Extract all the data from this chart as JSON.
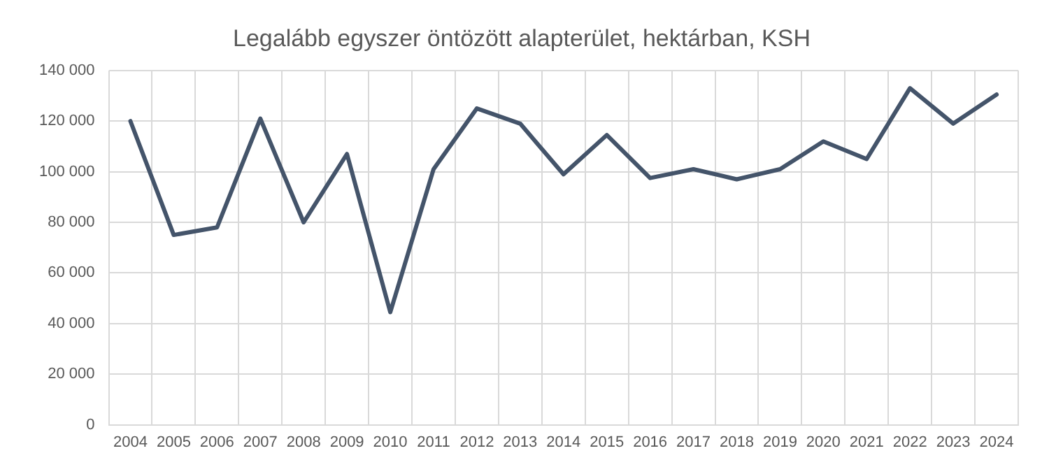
{
  "chart_data": {
    "type": "line",
    "title": "Legalább egyszer öntözött alapterület, hektárban, KSH",
    "categories": [
      "2004",
      "2005",
      "2006",
      "2007",
      "2008",
      "2009",
      "2010",
      "2011",
      "2012",
      "2013",
      "2014",
      "2015",
      "2016",
      "2017",
      "2018",
      "2019",
      "2020",
      "2021",
      "2022",
      "2023",
      "2024"
    ],
    "series": [
      {
        "color": "#44546a",
        "values": [
          120000,
          75000,
          78000,
          121000,
          80000,
          107000,
          44500,
          101000,
          125000,
          119000,
          99000,
          114500,
          97500,
          101000,
          97000,
          101000,
          112000,
          105000,
          133000,
          119000,
          130500
        ]
      }
    ],
    "ylim": [
      0,
      140000
    ],
    "yticks": [
      {
        "value": 0,
        "label": "0"
      },
      {
        "value": 20000,
        "label": "20 000"
      },
      {
        "value": 40000,
        "label": "40 000"
      },
      {
        "value": 60000,
        "label": "60 000"
      },
      {
        "value": 80000,
        "label": "80 000"
      },
      {
        "value": 100000,
        "label": "100 000"
      },
      {
        "value": 120000,
        "label": "120 000"
      },
      {
        "value": 140000,
        "label": "140 000"
      }
    ],
    "grid": true,
    "marker": "none",
    "line_style": "solid",
    "legend": false
  }
}
